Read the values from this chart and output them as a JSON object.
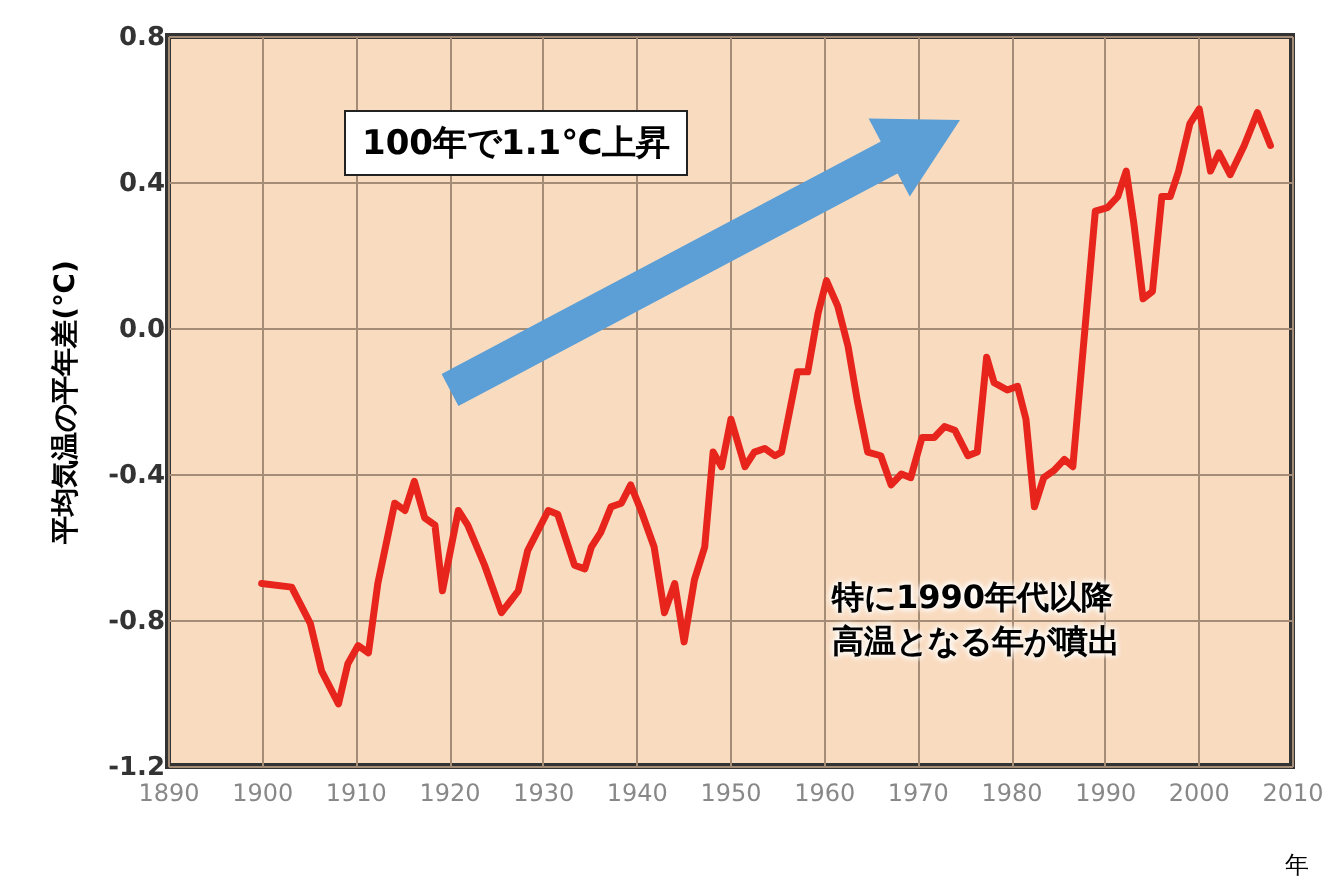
{
  "chart_data": {
    "type": "line",
    "xlabel": "年",
    "ylabel": "平均気温の平年差(℃)",
    "annotations": [
      "100年で1.1℃上昇",
      "特に1990年代以降",
      "高温となる年が噴出"
    ],
    "x": [
      1900,
      1903.2,
      1905.2,
      1906.4,
      1908.2,
      1909.2,
      1910.3,
      1911.4,
      1912.4,
      1914.2,
      1915.3,
      1916.3,
      1917.4,
      1918.5,
      1919.3,
      1921,
      1922,
      1923.8,
      1925.6,
      1927.4,
      1928.4,
      1930.6,
      1931.6,
      1933.4,
      1934.5,
      1935.2,
      1936.2,
      1937.3,
      1938.4,
      1939.4,
      1940.5,
      1941.9,
      1943,
      1944.1,
      1945.1,
      1946.2,
      1947.3,
      1948.2,
      1949.1,
      1950.1,
      1951.6,
      1952.6,
      1953.7,
      1954.8,
      1955.5,
      1957.2,
      1958.3,
      1959.4,
      1960.3,
      1961.5,
      1962.6,
      1963.6,
      1964.7,
      1966.1,
      1967.2,
      1968.3,
      1969.3,
      1970.5,
      1971.8,
      1972.9,
      1974,
      1975.4,
      1976.4,
      1977.4,
      1978.2,
      1979.6,
      1980.7,
      1981.6,
      1982.5,
      1983.5,
      1984.6,
      1985.7,
      1986.6,
      1989,
      1990.3,
      1991.4,
      1992.3,
      1993.1,
      1994.1,
      1995.1,
      1996.1,
      1997,
      1997.9,
      1999.1,
      2000.1,
      2001.3,
      2002.2,
      2003.4,
      2004.9,
      2006.3,
      2007.7
    ],
    "series": [
      {
        "color": "#e8251d",
        "values": [
          -0.7,
          -0.71,
          -0.81,
          -0.94,
          -1.03,
          -0.92,
          -0.87,
          -0.89,
          -0.7,
          -0.48,
          -0.5,
          -0.42,
          -0.52,
          -0.54,
          -0.72,
          -0.5,
          -0.54,
          -0.65,
          -0.78,
          -0.72,
          -0.61,
          -0.5,
          -0.51,
          -0.65,
          -0.66,
          -0.6,
          -0.56,
          -0.49,
          -0.48,
          -0.43,
          -0.5,
          -0.6,
          -0.78,
          -0.7,
          -0.86,
          -0.69,
          -0.6,
          -0.34,
          -0.38,
          -0.25,
          -0.38,
          -0.34,
          -0.33,
          -0.35,
          -0.34,
          -0.12,
          -0.12,
          0.04,
          0.13,
          0.06,
          -0.05,
          -0.2,
          -0.34,
          -0.35,
          -0.43,
          -0.4,
          -0.41,
          -0.3,
          -0.3,
          -0.27,
          -0.28,
          -0.35,
          -0.34,
          -0.08,
          -0.15,
          -0.17,
          -0.16,
          -0.25,
          -0.49,
          -0.41,
          -0.39,
          -0.36,
          -0.38,
          0.32,
          0.33,
          0.36,
          0.43,
          0.29,
          0.08,
          0.1,
          0.36,
          0.36,
          0.43,
          0.56,
          0.6,
          0.43,
          0.48,
          0.42,
          0.5,
          0.59,
          0.5
        ]
      }
    ],
    "xlim": [
      1890,
      2010
    ],
    "xticks": [
      1890,
      1900,
      1910,
      1920,
      1930,
      1940,
      1950,
      1960,
      1970,
      1980,
      1990,
      2000,
      2010
    ],
    "ylim": [
      -1.2,
      0.8
    ],
    "yticks": [
      {
        "value": 0.8,
        "label": "0.8"
      },
      {
        "value": 0.4,
        "label": "0.4"
      },
      {
        "value": 0,
        "label": "0.0"
      },
      {
        "value": -0.4,
        "label": "-0.4"
      },
      {
        "value": -0.8,
        "label": "-0.8"
      },
      {
        "value": -1.2,
        "label": "-1.2"
      }
    ],
    "grid": true,
    "marker": "none",
    "line_style": "solid"
  }
}
